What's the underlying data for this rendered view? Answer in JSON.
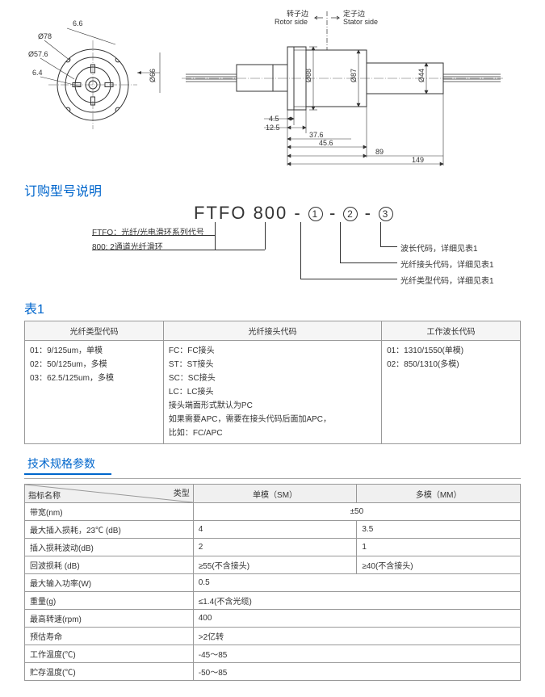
{
  "diagram": {
    "rotor_label_cn": "转子边",
    "rotor_label_en": "Rotor side",
    "stator_label_cn": "定子边",
    "stator_label_en": "Stator side",
    "arrow1": "→",
    "arrow2": "←",
    "front_dims": {
      "d1": "6.6",
      "d2": "Ø78",
      "d3": "Ø57.6",
      "d4": "6.4",
      "d5": "Ø66"
    },
    "side_dims": {
      "a": "4.5",
      "b": "12.5",
      "c": "37.6",
      "d": "45.6",
      "e": "89",
      "f": "149",
      "g": "Ø88",
      "h": "Ø87",
      "i": "Ø44"
    }
  },
  "order_section": {
    "title": "订购型号说明"
  },
  "part_number": {
    "prefix": "FTFO",
    "num": "800",
    "sep": "-",
    "p1": "1",
    "p2": "2",
    "p3": "3",
    "callout_ftfo": "FTFO：光纤/光电滑环系列代号",
    "callout_800": "800: 2通道光纤滑环",
    "callout_1": "光纤类型代码，详细见表1",
    "callout_2": "光纤接头代码，详细见表1",
    "callout_3": "波长代码，详细见表1"
  },
  "table1": {
    "title": "表1",
    "headers": [
      "光纤类型代码",
      "光纤接头代码",
      "工作波长代码"
    ],
    "col1": "01：9/125um，单模\n02：50/125um，多模\n03：62.5/125um，多模",
    "col2": "FC：FC接头\nST：ST接头\nSC：SC接头\nLC：LC接头\n接头端面形式默认为PC\n如果需要APC，需要在接头代码后面加APC，\n比如：FC/APC",
    "col3": "01：1310/1550(单模)\n02：850/1310(多模)"
  },
  "tech": {
    "title": "技术规格参数",
    "hdr_name": "指标名称",
    "hdr_type": "类型",
    "hdr_sm": "单模（SM）",
    "hdr_mm": "多模（MM）",
    "rows": [
      {
        "label": "带宽(nm)",
        "v": "±50",
        "span": 2
      },
      {
        "label": "最大插入损耗，23℃ (dB)",
        "sm": "4",
        "mm": "3.5"
      },
      {
        "label": "插入损耗波动(dB)",
        "sm": "2",
        "mm": "1"
      },
      {
        "label": "回波损耗 (dB)",
        "sm": "≥55(不含接头)",
        "mm": "≥40(不含接头)"
      },
      {
        "label": "最大输入功率(W)",
        "v": "0.5",
        "span": 2
      },
      {
        "label": "重量(g)",
        "v": "≤1.4(不含光缆)",
        "span": 2
      },
      {
        "label": "最高转速(rpm)",
        "v": "400",
        "span": 2
      },
      {
        "label": "预估寿命",
        "v": ">2亿转",
        "span": 2
      },
      {
        "label": "工作温度(℃)",
        "v": "-45～85",
        "span": 2
      },
      {
        "label": "贮存温度(℃)",
        "v": "-50～85",
        "span": 2
      }
    ]
  }
}
